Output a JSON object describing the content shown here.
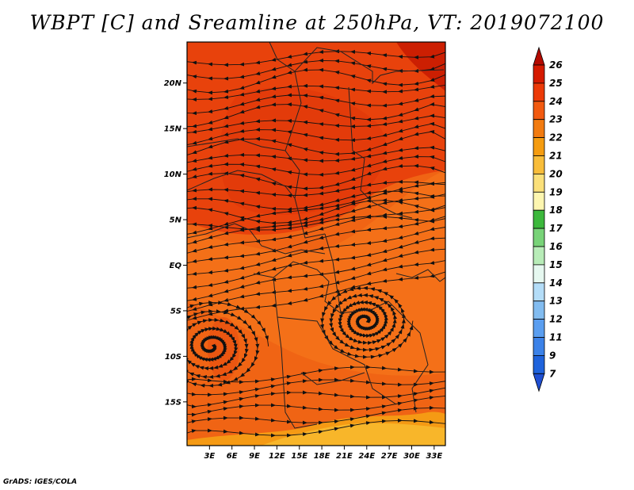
{
  "title": "WBPT [C] and Sreamline at 250hPa, VT: 2019072100",
  "footer": "GrADS: IGES/COLA",
  "map": {
    "field": "Wet-bulb potential temperature",
    "units": "C",
    "level": "250hPa",
    "valid_time": "2019072100",
    "lat_labels": [
      "20N",
      "15N",
      "10N",
      "5N",
      "EQ",
      "5S",
      "10S",
      "15S"
    ],
    "lat_values": [
      20,
      15,
      10,
      5,
      0,
      -5,
      -10,
      -15
    ],
    "lon_labels": [
      "3E",
      "6E",
      "9E",
      "12E",
      "15E",
      "18E",
      "21E",
      "24E",
      "27E",
      "30E",
      "33E"
    ],
    "lon_values": [
      3,
      6,
      9,
      12,
      15,
      18,
      21,
      24,
      27,
      30,
      33
    ],
    "lat_range": [
      -19.8,
      24.5
    ],
    "lon_range": [
      0,
      34.5
    ],
    "vortices": [
      {
        "name": "west-cyclone",
        "lon": 3.2,
        "lat": -8.9
      },
      {
        "name": "east-cyclone",
        "lon": 23.8,
        "lat": -6.1
      }
    ]
  },
  "colorbar": {
    "labels": [
      "26",
      "25",
      "24",
      "23",
      "22",
      "21",
      "20",
      "19",
      "18",
      "17",
      "16",
      "15",
      "14",
      "13",
      "12",
      "11",
      "9",
      "7"
    ],
    "colors": [
      "#b40a00",
      "#d51a00",
      "#ec3a08",
      "#f25a10",
      "#f27b10",
      "#f59c10",
      "#f8bd3a",
      "#fbe07a",
      "#fdf6b0",
      "#3cb83c",
      "#78d378",
      "#b8ecb8",
      "#e6f8f0",
      "#b4ddf8",
      "#82bcf0",
      "#5a9ef0",
      "#3c82e8",
      "#1f63dc",
      "#1f4fd2"
    ]
  }
}
